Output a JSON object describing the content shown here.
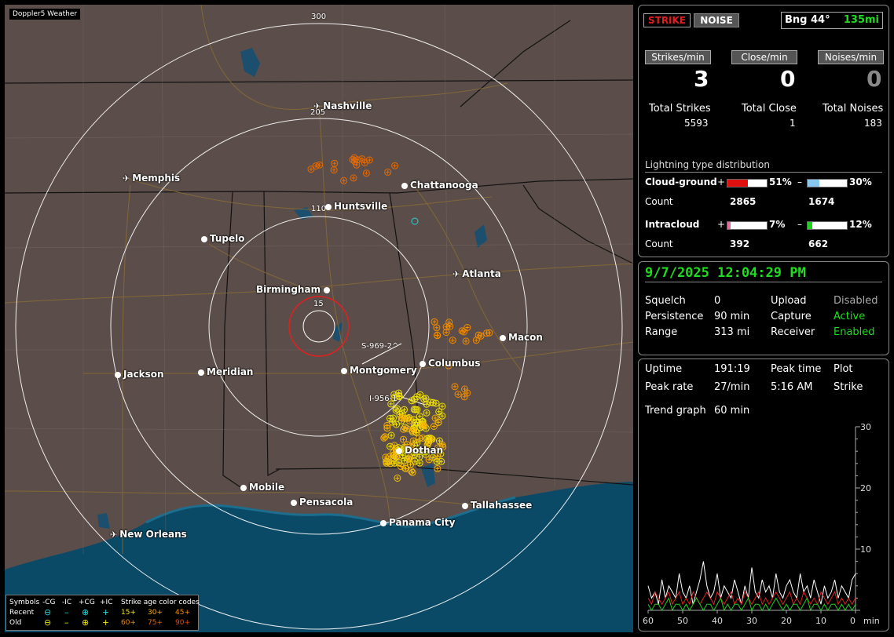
{
  "map": {
    "brand": "Doppler5 Weather",
    "rings": [
      "300",
      "205",
      "110",
      "15"
    ],
    "tracks": [
      "S-969-2^",
      "I-956-1"
    ],
    "cities": [
      {
        "name": "Nashville",
        "icon": "airport"
      },
      {
        "name": "Memphis",
        "icon": "airport"
      },
      {
        "name": "Chattanooga",
        "icon": "dot"
      },
      {
        "name": "Huntsville",
        "icon": "dot"
      },
      {
        "name": "Tupelo",
        "icon": "dot"
      },
      {
        "name": "Atlanta",
        "icon": "airport"
      },
      {
        "name": "Birmingham",
        "icon": "dot"
      },
      {
        "name": "Macon",
        "icon": "dot"
      },
      {
        "name": "Columbus",
        "icon": "dot"
      },
      {
        "name": "Montgomery",
        "icon": "dot"
      },
      {
        "name": "Jackson",
        "icon": "dot"
      },
      {
        "name": "Meridian",
        "icon": "dot"
      },
      {
        "name": "Dothan",
        "icon": "dot"
      },
      {
        "name": "Mobile",
        "icon": "dot"
      },
      {
        "name": "Pensacola",
        "icon": "dot"
      },
      {
        "name": "Tallahassee",
        "icon": "dot"
      },
      {
        "name": "Panama City",
        "icon": "dot"
      },
      {
        "name": "New Orleans",
        "icon": "airport"
      }
    ],
    "legend": {
      "symbols_label": "Symbols",
      "cols": [
        "-CG",
        "-IC",
        "+CG",
        "+IC"
      ],
      "rows": [
        "Recent",
        "Old"
      ],
      "age_title": "Strike age color codes",
      "ages_recent": [
        "15+",
        "30+",
        "45+"
      ],
      "ages_old": [
        "60+",
        "75+",
        "90+"
      ]
    }
  },
  "header": {
    "strike": "STRIKE",
    "noise": "NOISE",
    "bearing": "Bng 44°",
    "distance": "135mi"
  },
  "rates": {
    "strikes_label": "Strikes/min",
    "strikes": "3",
    "close_label": "Close/min",
    "close": "0",
    "noises_label": "Noises/min",
    "noises": "0"
  },
  "totals": {
    "strikes_label": "Total Strikes",
    "strikes": "5593",
    "close_label": "Total Close",
    "close": "1",
    "noises_label": "Total Noises",
    "noises": "183"
  },
  "dist": {
    "title": "Lightning type distribution",
    "cg_label": "Cloud-ground",
    "cg_pos_pct": "51%",
    "cg_pos_fill": 0.51,
    "cg_neg_pct": "30%",
    "cg_neg_fill": 0.3,
    "count_label": "Count",
    "cg_pos_count": "2865",
    "cg_neg_count": "1674",
    "ic_label": "Intracloud",
    "ic_pos_pct": "7%",
    "ic_pos_fill": 0.07,
    "ic_neg_pct": "12%",
    "ic_neg_fill": 0.12,
    "ic_pos_count": "392",
    "ic_neg_count": "662",
    "plus": "+",
    "minus": "–"
  },
  "status": {
    "datetime": "9/7/2025 12:04:29 PM",
    "squelch_label": "Squelch",
    "squelch": "0",
    "persistence_label": "Persistence",
    "persistence": "90 min",
    "range_label": "Range",
    "range": "313 mi",
    "upload_label": "Upload",
    "upload": "Disabled",
    "capture_label": "Capture",
    "capture": "Active",
    "receiver_label": "Receiver",
    "receiver": "Enabled"
  },
  "stats": {
    "uptime_label": "Uptime",
    "uptime": "191:19",
    "peak_time_label": "Peak time",
    "peak_time": "5:16 AM",
    "plot_label": "Plot",
    "plot": "Strike",
    "peak_rate_label": "Peak rate",
    "peak_rate": "27/min",
    "trend_label": "Trend graph",
    "trend": "60 min"
  },
  "chart_data": {
    "type": "line",
    "xlabel": "min",
    "x_ticks": [
      "60",
      "50",
      "40",
      "30",
      "20",
      "10",
      "0"
    ],
    "y_ticks": [
      "30",
      "20",
      "10"
    ],
    "ylim": [
      0,
      30
    ],
    "xlim": [
      60,
      0
    ],
    "series": [
      {
        "color": "#ffffff",
        "values": [
          4,
          2,
          3,
          1,
          5,
          2,
          4,
          3,
          2,
          6,
          3,
          2,
          4,
          1,
          3,
          5,
          8,
          4,
          2,
          3,
          6,
          2,
          4,
          3,
          2,
          5,
          3,
          1,
          4,
          2,
          7,
          3,
          2,
          5,
          3,
          4,
          2,
          6,
          3,
          2,
          4,
          5,
          3,
          2,
          6,
          3,
          4,
          2,
          5,
          3,
          1,
          4,
          2,
          3,
          5,
          2,
          4,
          3,
          2,
          5,
          6
        ]
      },
      {
        "color": "#dd2222",
        "values": [
          2,
          1,
          3,
          2,
          1,
          2,
          3,
          1,
          2,
          3,
          1,
          2,
          1,
          3,
          2,
          1,
          2,
          3,
          2,
          1,
          3,
          2,
          1,
          2,
          3,
          1,
          2,
          1,
          3,
          2,
          1,
          2,
          3,
          1,
          2,
          1,
          2,
          3,
          2,
          1,
          2,
          3,
          1,
          2,
          1,
          3,
          2,
          1,
          2,
          1,
          3,
          2,
          1,
          2,
          3,
          1,
          2,
          1,
          2,
          1,
          2
        ]
      },
      {
        "color": "#22cc22",
        "values": [
          1,
          0,
          1,
          1,
          0,
          1,
          2,
          0,
          1,
          1,
          0,
          1,
          0,
          1,
          2,
          1,
          0,
          1,
          1,
          0,
          1,
          2,
          0,
          1,
          0,
          1,
          1,
          0,
          1,
          2,
          0,
          1,
          1,
          0,
          1,
          0,
          1,
          2,
          1,
          0,
          1,
          0,
          1,
          1,
          0,
          1,
          2,
          0,
          1,
          1,
          0,
          1,
          0,
          1,
          1,
          0,
          1,
          0,
          1,
          0,
          1
        ]
      }
    ]
  },
  "colors": {
    "accent_green": "#1fdc1f",
    "strike_red": "#e02020",
    "ring_red": "#e02020"
  }
}
